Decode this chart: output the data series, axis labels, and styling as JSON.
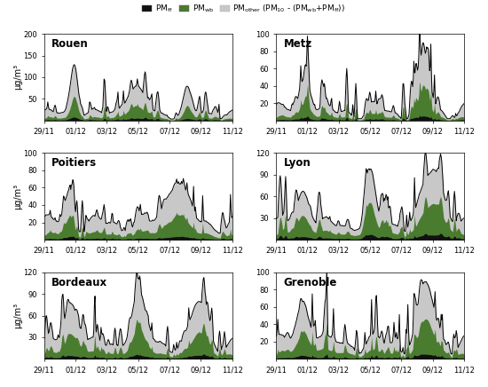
{
  "cities": [
    "Rouen",
    "Metz",
    "Poitiers",
    "Lyon",
    "Bordeaux",
    "Grenoble"
  ],
  "city_order": [
    [
      "Rouen",
      "Metz"
    ],
    [
      "Poitiers",
      "Lyon"
    ],
    [
      "Bordeaux",
      "Grenoble"
    ]
  ],
  "ylims": {
    "Rouen": [
      0,
      200
    ],
    "Metz": [
      0,
      100
    ],
    "Poitiers": [
      0,
      100
    ],
    "Lyon": [
      0,
      120
    ],
    "Bordeaux": [
      0,
      120
    ],
    "Grenoble": [
      0,
      100
    ]
  },
  "yticks": {
    "Rouen": [
      0,
      50,
      100,
      150,
      200
    ],
    "Metz": [
      0,
      20,
      40,
      60,
      80,
      100
    ],
    "Poitiers": [
      0,
      20,
      40,
      60,
      80,
      100
    ],
    "Lyon": [
      0,
      30,
      60,
      90,
      120
    ],
    "Bordeaux": [
      0,
      30,
      60,
      90,
      120
    ],
    "Grenoble": [
      0,
      20,
      40,
      60,
      80,
      100
    ]
  },
  "color_ff": "#111111",
  "color_wb": "#4a7c2f",
  "color_other": "#c8c8c8",
  "color_line": "#000000",
  "x_ticks": [
    "29/11",
    "01/12",
    "03/12",
    "05/12",
    "07/12",
    "09/12",
    "11/12"
  ],
  "n_points": 312,
  "ylabel": "μg/m³",
  "fig_bg": "#ffffff",
  "city_seeds": {
    "Rouen": 10,
    "Metz": 20,
    "Poitiers": 30,
    "Lyon": 40,
    "Bordeaux": 50,
    "Grenoble": 60
  }
}
